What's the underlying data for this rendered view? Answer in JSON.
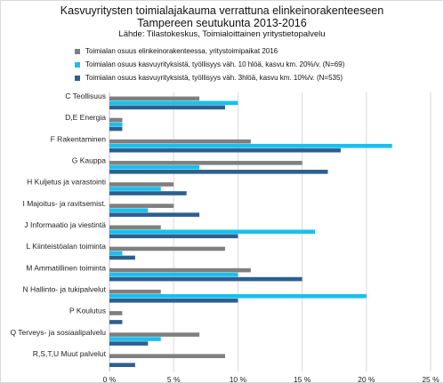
{
  "title_line1": "Kasvuyritysten toimialajakauma verrattuna elinkeinorakenteeseen",
  "title_line2": "Tampereen seutukunta 2013-2016",
  "subtitle": "Lähde: Tilastokeskus, Toimialoittainen yritystietopalvelu",
  "colors": [
    "#7f7f7f",
    "#17c0f0",
    "#2e5f8f"
  ],
  "chart_data": {
    "type": "bar",
    "orientation": "horizontal",
    "title": "Kasvuyritysten toimialajakauma verrattuna elinkeinorakenteeseen Tampereen seutukunta 2013-2016",
    "subtitle": "Lähde: Tilastokeskus, Toimialoittainen yritystietopalvelu",
    "categories": [
      "C Teollisuus",
      "D,E Energia",
      "F Rakentaminen",
      "G Kauppa",
      "H Kuljetus ja varastointi",
      "I Majoitus- ja ravitsemist.",
      "J Informaatio ja viestintä",
      "L Kiinteistöalan toiminta",
      "M Ammatillinen toiminta",
      "N Hallinto- ja tukipalvelut",
      "P Koulutus",
      "Q Terveys- ja sosiaalipalvelu",
      "R,S,T,U Muut palvelut"
    ],
    "series": [
      {
        "name": "Toimialan osuus elinkeinorakenteessa, yritystoimipaikat 2016",
        "color": "#7f7f7f",
        "values": [
          7,
          1,
          11,
          15,
          5,
          5,
          4,
          9,
          11,
          4,
          1,
          7,
          9
        ]
      },
      {
        "name": "Toimialan osuus kasvuyrityksistä, työllisyys väh. 10 hlöä, kasvu km. 20%/v. (N=69)",
        "color": "#17c0f0",
        "values": [
          10,
          1,
          22,
          7,
          4,
          3,
          16,
          1,
          10,
          20,
          0,
          4,
          0
        ]
      },
      {
        "name": "Toimialan osuus kasvuyrityksistä, työllisyys väh. 3hlöä, kasvu km. 10%/v. (N=535)",
        "color": "#2e5f8f",
        "values": [
          9,
          1,
          18,
          17,
          6,
          7,
          10,
          2,
          15,
          10,
          1,
          3,
          2
        ]
      }
    ],
    "xlim": [
      0,
      25
    ],
    "x_ticks": [
      "0 %",
      "5 %",
      "10 %",
      "15 %",
      "20 %",
      "25 %"
    ],
    "grid": true,
    "legend_position": "top"
  }
}
